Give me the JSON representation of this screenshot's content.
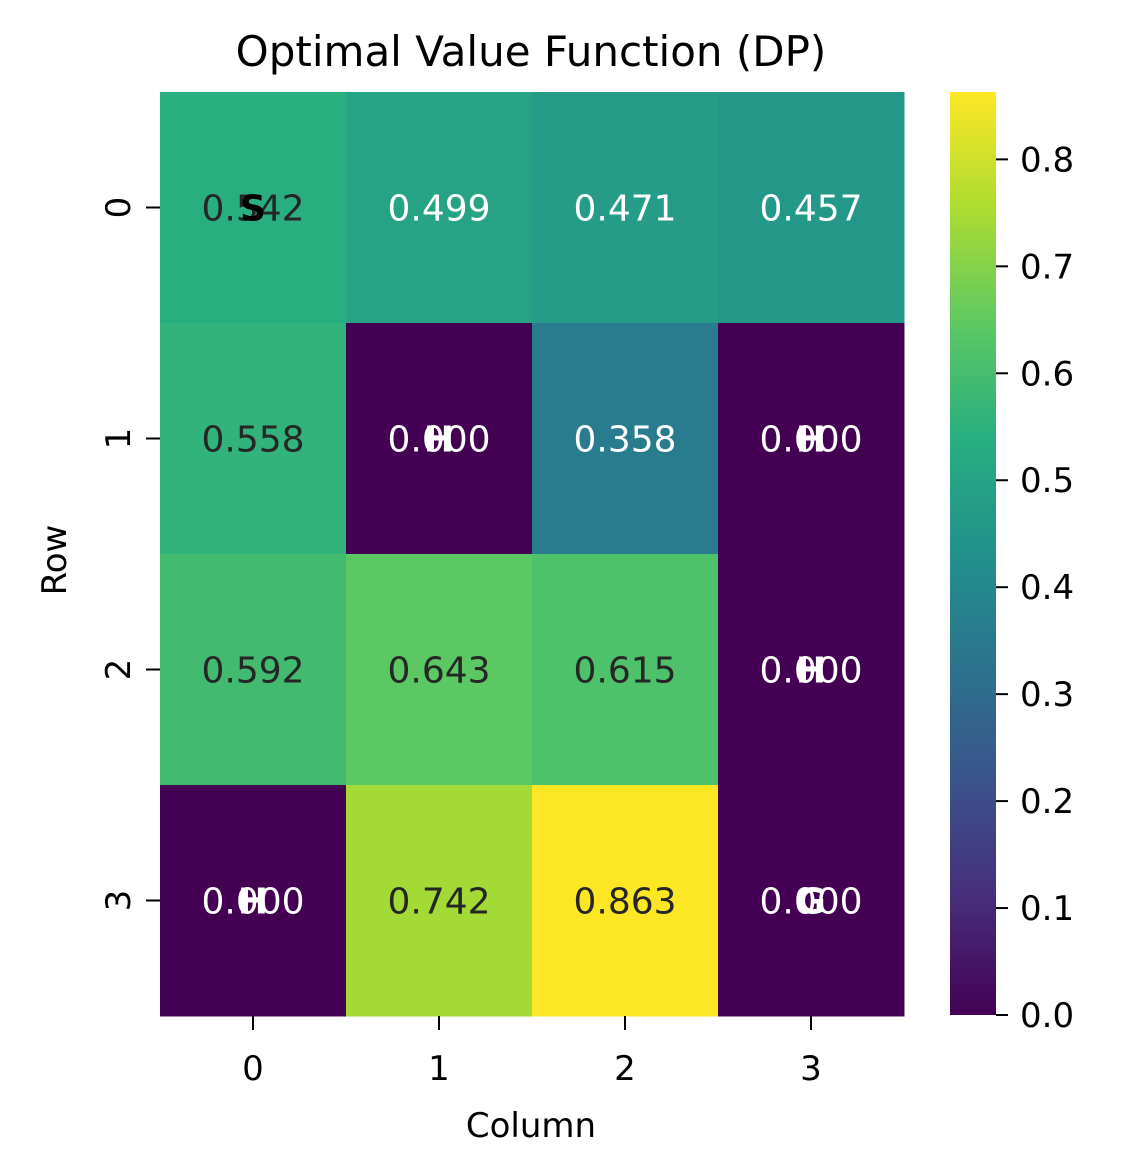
{
  "chart_data": {
    "type": "heatmap",
    "title": "Optimal Value Function (DP)",
    "xlabel": "Column",
    "ylabel": "Row",
    "x_ticks": [
      "0",
      "1",
      "2",
      "3"
    ],
    "y_ticks": [
      "0",
      "1",
      "2",
      "3"
    ],
    "values": [
      [
        0.542,
        0.499,
        0.471,
        0.457
      ],
      [
        0.558,
        0.0,
        0.358,
        0.0
      ],
      [
        0.592,
        0.643,
        0.615,
        0.0
      ],
      [
        0.0,
        0.742,
        0.863,
        0.0
      ]
    ],
    "cell_labels": [
      [
        "0.542",
        "0.499",
        "0.471",
        "0.457"
      ],
      [
        "0.558",
        "0.000",
        "0.358",
        "0.000"
      ],
      [
        "0.592",
        "0.643",
        "0.615",
        "0.000"
      ],
      [
        "0.000",
        "0.742",
        "0.863",
        "0.000"
      ]
    ],
    "cell_markers": [
      [
        "S",
        "",
        "",
        ""
      ],
      [
        "",
        "H",
        "",
        "H"
      ],
      [
        "",
        "",
        "",
        "H"
      ],
      [
        "H",
        "",
        "",
        "G"
      ]
    ],
    "colormap": "viridis",
    "colorbar": {
      "min": 0.0,
      "max": 0.863,
      "ticks": [
        0.0,
        0.1,
        0.2,
        0.3,
        0.4,
        0.5,
        0.6,
        0.7,
        0.8
      ],
      "tick_labels": [
        "0.0",
        "0.1",
        "0.2",
        "0.3",
        "0.4",
        "0.5",
        "0.6",
        "0.7",
        "0.8"
      ]
    },
    "grid": false
  }
}
